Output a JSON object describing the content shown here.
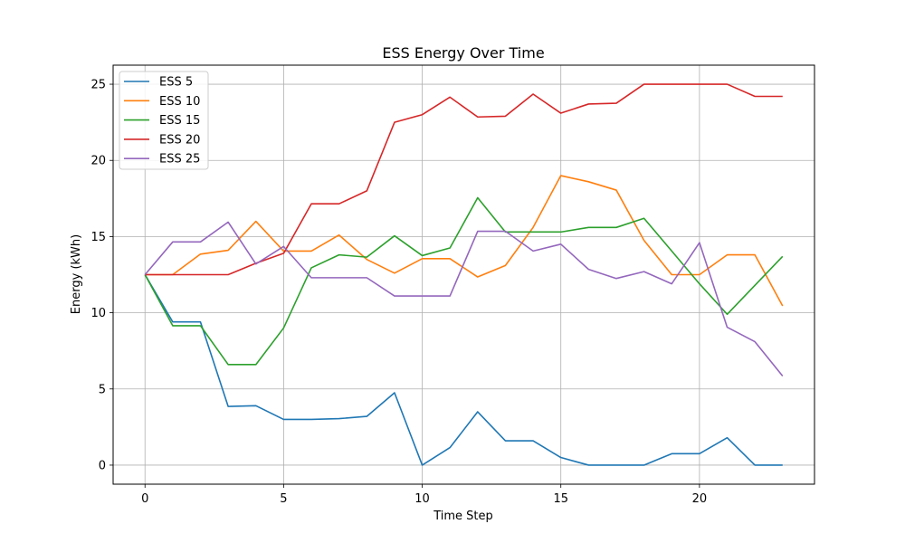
{
  "chart_data": {
    "type": "line",
    "title": "ESS Energy Over Time",
    "xlabel": "Time Step",
    "ylabel": "Energy (kWh)",
    "xlim": [
      -1.15,
      24.15
    ],
    "ylim": [
      -1.25,
      26.25
    ],
    "xticks": [
      0,
      5,
      10,
      15,
      20
    ],
    "xtick_labels": [
      "0",
      "5",
      "10",
      "15",
      "20"
    ],
    "yticks": [
      0,
      5,
      10,
      15,
      20,
      25
    ],
    "ytick_labels": [
      "0",
      "5",
      "10",
      "15",
      "20",
      "25"
    ],
    "grid": true,
    "legend_position": "top-left",
    "x": [
      0,
      1,
      2,
      3,
      4,
      5,
      6,
      7,
      8,
      9,
      10,
      11,
      12,
      13,
      14,
      15,
      16,
      17,
      18,
      19,
      20,
      21,
      22,
      23
    ],
    "series": [
      {
        "name": "ESS 5",
        "color": "#1f77b4",
        "values": [
          12.5,
          9.4,
          9.4,
          3.85,
          3.9,
          3.0,
          3.0,
          3.05,
          3.2,
          4.75,
          0.0,
          1.15,
          3.5,
          1.6,
          1.6,
          0.5,
          0.0,
          0.0,
          0.0,
          0.75,
          0.75,
          1.8,
          0.0,
          0.0
        ]
      },
      {
        "name": "ESS 10",
        "color": "#ff7f0e",
        "values": [
          12.5,
          12.5,
          13.85,
          14.1,
          16.0,
          14.05,
          14.05,
          15.1,
          13.5,
          12.6,
          13.55,
          13.55,
          12.35,
          13.1,
          15.6,
          19.0,
          18.6,
          18.05,
          14.75,
          12.5,
          12.5,
          13.8,
          13.8,
          10.45
        ]
      },
      {
        "name": "ESS 15",
        "color": "#2ca02c",
        "values": [
          12.5,
          9.15,
          9.15,
          6.6,
          6.6,
          9.0,
          12.95,
          13.8,
          13.65,
          15.05,
          13.75,
          14.25,
          17.55,
          15.3,
          15.3,
          15.3,
          15.6,
          15.6,
          16.2,
          14.05,
          11.9,
          9.9,
          11.8,
          13.7
        ]
      },
      {
        "name": "ESS 20",
        "color": "#d62728",
        "values": [
          12.5,
          12.5,
          12.5,
          12.5,
          13.25,
          13.9,
          17.15,
          17.15,
          18.0,
          22.5,
          23.0,
          24.15,
          22.85,
          22.9,
          24.35,
          23.1,
          23.7,
          23.75,
          25.0,
          25.0,
          25.0,
          25.0,
          24.2,
          24.2
        ]
      },
      {
        "name": "ESS 25",
        "color": "#9467bd",
        "values": [
          12.5,
          14.65,
          14.65,
          15.95,
          13.2,
          14.35,
          12.3,
          12.3,
          12.3,
          11.1,
          11.1,
          11.1,
          15.35,
          15.35,
          14.05,
          14.5,
          12.85,
          12.25,
          12.7,
          11.9,
          14.6,
          9.05,
          8.1,
          5.85
        ]
      }
    ]
  }
}
